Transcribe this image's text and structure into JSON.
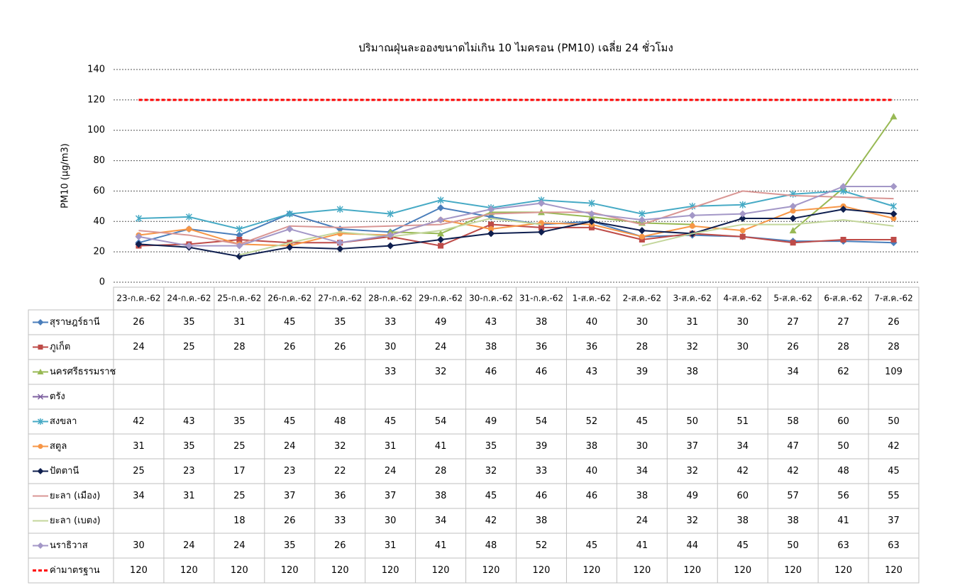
{
  "chart_data": {
    "type": "line",
    "title": "ปริมาณฝุ่นละอองขนาดไม่เกิน 10 ไมครอน (PM10) เฉลี่ย 24 ชั่วโมง",
    "y_label": "PM10 (µg/m3)",
    "categories": [
      "23-ก.ค.-62",
      "24-ก.ค.-62",
      "25-ก.ค.-62",
      "26-ก.ค.-62",
      "27-ก.ค.-62",
      "28-ก.ค.-62",
      "29-ก.ค.-62",
      "30-ก.ค.-62",
      "31-ก.ค.-62",
      "1-ส.ค.-62",
      "2-ส.ค.-62",
      "3-ส.ค.-62",
      "4-ส.ค.-62",
      "5-ส.ค.-62",
      "6-ส.ค.-62",
      "7-ส.ค.-62"
    ],
    "ylim": [
      0,
      140
    ],
    "yticks": [
      0,
      20,
      40,
      60,
      80,
      100,
      120,
      140
    ],
    "grid": true,
    "series": [
      {
        "name": "สุราษฎร์ธานี",
        "color": "#4a7ebb",
        "marker": "diamond",
        "values": [
          26,
          35,
          31,
          45,
          35,
          33,
          49,
          43,
          38,
          40,
          30,
          31,
          30,
          27,
          27,
          26
        ]
      },
      {
        "name": "ภูเก็ต",
        "color": "#be4b48",
        "marker": "square",
        "values": [
          24,
          25,
          28,
          26,
          26,
          30,
          24,
          38,
          36,
          36,
          28,
          32,
          30,
          26,
          28,
          28
        ]
      },
      {
        "name": "นครศรีธรรมราช",
        "color": "#98b954",
        "marker": "triangle",
        "values": [
          null,
          null,
          null,
          null,
          null,
          33,
          32,
          46,
          46,
          43,
          39,
          38,
          null,
          34,
          62,
          109
        ]
      },
      {
        "name": "ตรัง",
        "color": "#7d60a0",
        "marker": "x",
        "values": [
          null,
          null,
          null,
          null,
          null,
          null,
          null,
          null,
          null,
          null,
          null,
          null,
          null,
          null,
          null,
          null
        ]
      },
      {
        "name": "สงขลา",
        "color": "#46aac5",
        "marker": "star",
        "values": [
          42,
          43,
          35,
          45,
          48,
          45,
          54,
          49,
          54,
          52,
          45,
          50,
          51,
          58,
          60,
          50
        ]
      },
      {
        "name": "สตูล",
        "color": "#f79646",
        "marker": "circle",
        "values": [
          31,
          35,
          25,
          24,
          32,
          31,
          41,
          35,
          39,
          38,
          30,
          37,
          34,
          47,
          50,
          42
        ]
      },
      {
        "name": "ปัตตานี",
        "color": "#0f1f4f",
        "marker": "diamond",
        "values": [
          25,
          23,
          17,
          23,
          22,
          24,
          28,
          32,
          33,
          40,
          34,
          32,
          42,
          42,
          48,
          45
        ]
      },
      {
        "name": "ยะลา (เมือง)",
        "color": "#d99694",
        "marker": "none",
        "values": [
          34,
          31,
          25,
          37,
          36,
          37,
          38,
          45,
          46,
          46,
          38,
          49,
          60,
          57,
          56,
          55
        ]
      },
      {
        "name": "ยะลา (เบตง)",
        "color": "#c3d69b",
        "marker": "none",
        "values": [
          null,
          null,
          18,
          26,
          33,
          30,
          34,
          42,
          38,
          null,
          24,
          32,
          38,
          38,
          41,
          37
        ]
      },
      {
        "name": "นราธิวาส",
        "color": "#a397c7",
        "marker": "diamond",
        "values": [
          30,
          24,
          24,
          35,
          26,
          31,
          41,
          48,
          52,
          45,
          41,
          44,
          45,
          50,
          63,
          63
        ]
      },
      {
        "name": "ค่ามาตรฐาน",
        "color": "#ff0000",
        "marker": "none",
        "dashed": true,
        "values": [
          120,
          120,
          120,
          120,
          120,
          120,
          120,
          120,
          120,
          120,
          120,
          120,
          120,
          120,
          120,
          120
        ]
      }
    ]
  }
}
